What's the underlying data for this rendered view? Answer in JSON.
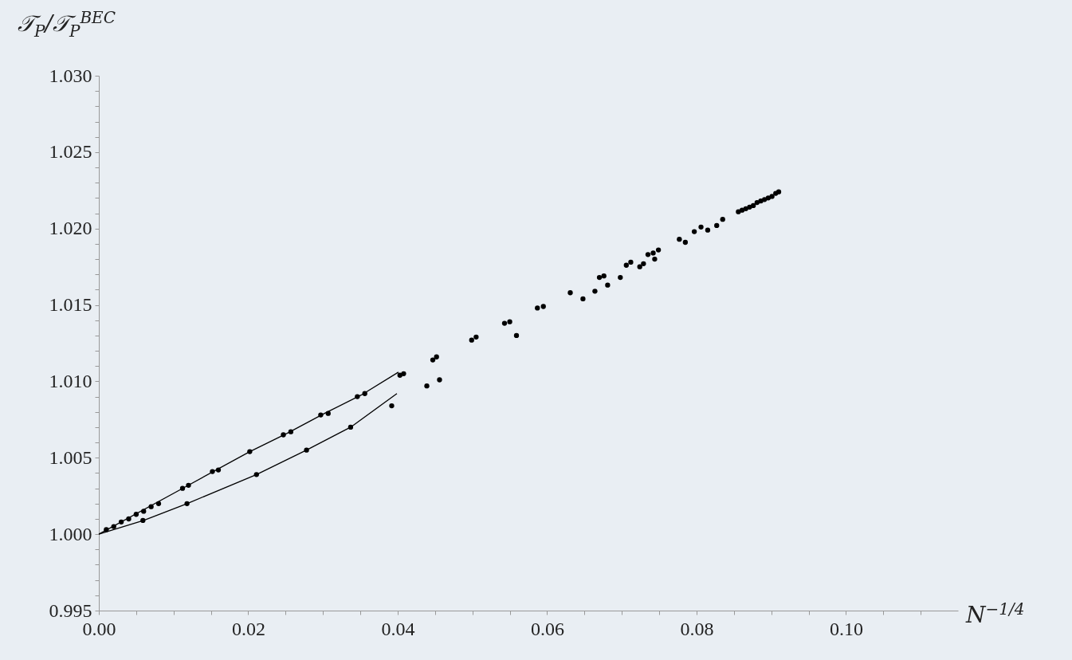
{
  "chart_data": {
    "type": "scatter",
    "xlabel": "N$^{−1/4}$",
    "ylabel": "𝒯$_{P}$/𝒯$_{P}$$^{BEC}$",
    "xlim": [
      0,
      0.115
    ],
    "ylim": [
      0.995,
      1.03
    ],
    "xticks": [
      {
        "value": 0,
        "label": "0.00"
      },
      {
        "value": 0.005,
        "label": null
      },
      {
        "value": 0.01,
        "label": null
      },
      {
        "value": 0.015,
        "label": null
      },
      {
        "value": 0.02,
        "label": "0.02"
      },
      {
        "value": 0.025,
        "label": null
      },
      {
        "value": 0.03,
        "label": null
      },
      {
        "value": 0.035,
        "label": null
      },
      {
        "value": 0.04,
        "label": "0.04"
      },
      {
        "value": 0.045,
        "label": null
      },
      {
        "value": 0.05,
        "label": null
      },
      {
        "value": 0.055,
        "label": null
      },
      {
        "value": 0.06,
        "label": "0.06"
      },
      {
        "value": 0.065,
        "label": null
      },
      {
        "value": 0.07,
        "label": null
      },
      {
        "value": 0.075,
        "label": null
      },
      {
        "value": 0.08,
        "label": "0.08"
      },
      {
        "value": 0.085,
        "label": null
      },
      {
        "value": 0.09,
        "label": null
      },
      {
        "value": 0.095,
        "label": null
      },
      {
        "value": 0.1,
        "label": "0.10"
      },
      {
        "value": 0.105,
        "label": null
      },
      {
        "value": 0.11,
        "label": null
      }
    ],
    "yticks": [
      {
        "value": 0.995,
        "label": "0.995"
      },
      {
        "value": 0.996,
        "label": null
      },
      {
        "value": 0.997,
        "label": null
      },
      {
        "value": 0.998,
        "label": null
      },
      {
        "value": 0.999,
        "label": null
      },
      {
        "value": 1.0,
        "label": "1.000"
      },
      {
        "value": 1.001,
        "label": null
      },
      {
        "value": 1.002,
        "label": null
      },
      {
        "value": 1.003,
        "label": null
      },
      {
        "value": 1.004,
        "label": null
      },
      {
        "value": 1.005,
        "label": "1.005"
      },
      {
        "value": 1.006,
        "label": null
      },
      {
        "value": 1.007,
        "label": null
      },
      {
        "value": 1.008,
        "label": null
      },
      {
        "value": 1.009,
        "label": null
      },
      {
        "value": 1.01,
        "label": "1.010"
      },
      {
        "value": 1.011,
        "label": null
      },
      {
        "value": 1.012,
        "label": null
      },
      {
        "value": 1.013,
        "label": null
      },
      {
        "value": 1.014,
        "label": null
      },
      {
        "value": 1.015,
        "label": "1.015"
      },
      {
        "value": 1.016,
        "label": null
      },
      {
        "value": 1.017,
        "label": null
      },
      {
        "value": 1.018,
        "label": null
      },
      {
        "value": 1.019,
        "label": null
      },
      {
        "value": 1.02,
        "label": "1.020"
      },
      {
        "value": 1.021,
        "label": null
      },
      {
        "value": 1.022,
        "label": null
      },
      {
        "value": 1.023,
        "label": null
      },
      {
        "value": 1.024,
        "label": null
      },
      {
        "value": 1.025,
        "label": "1.025"
      },
      {
        "value": 1.026,
        "label": null
      },
      {
        "value": 1.027,
        "label": null
      },
      {
        "value": 1.028,
        "label": null
      },
      {
        "value": 1.029,
        "label": null
      },
      {
        "value": 1.03,
        "label": "1.030"
      }
    ],
    "series": [
      {
        "marker": "circle",
        "color": "#000000",
        "x": [
          0.001,
          0.002,
          0.003,
          0.004,
          0.005,
          0.006,
          0.007,
          0.008,
          0.0112,
          0.012,
          0.0152,
          0.016,
          0.0202,
          0.0247,
          0.0257,
          0.0297,
          0.0307,
          0.0346,
          0.0356,
          0.0403,
          0.0408,
          0.0059,
          0.0118,
          0.0211,
          0.0278,
          0.0337,
          0.0392,
          0.0439,
          0.0456,
          0.0447,
          0.0452,
          0.0499,
          0.0505,
          0.0543,
          0.055,
          0.0559,
          0.0587,
          0.0595,
          0.0631,
          0.0648,
          0.0664,
          0.067,
          0.0676,
          0.0681,
          0.0698,
          0.0706,
          0.0712,
          0.0724,
          0.0729,
          0.0735,
          0.0742,
          0.0744,
          0.0749,
          0.0777,
          0.0785,
          0.0797,
          0.0806,
          0.0815,
          0.0827,
          0.0835,
          0.0856,
          0.0861,
          0.0866,
          0.0871,
          0.0876,
          0.0881,
          0.0886,
          0.0891,
          0.0896,
          0.0901,
          0.0906,
          0.091
        ],
        "values": [
          1.0003,
          1.0005,
          1.0008,
          1.001,
          1.0013,
          1.0015,
          1.0018,
          1.002,
          1.003,
          1.0032,
          1.0041,
          1.0042,
          1.0054,
          1.0065,
          1.0067,
          1.0078,
          1.0079,
          1.009,
          1.0092,
          1.0104,
          1.0105,
          1.0009,
          1.002,
          1.0039,
          1.0055,
          1.007,
          1.0084,
          1.0097,
          1.0101,
          1.0114,
          1.0116,
          1.0127,
          1.0129,
          1.0138,
          1.0139,
          1.013,
          1.0148,
          1.0149,
          1.0158,
          1.0154,
          1.0159,
          1.0168,
          1.0169,
          1.0163,
          1.0168,
          1.0176,
          1.0178,
          1.0175,
          1.0177,
          1.0183,
          1.0184,
          1.018,
          1.0186,
          1.0193,
          1.0191,
          1.0198,
          1.0201,
          1.0199,
          1.0202,
          1.0206,
          1.0211,
          1.0212,
          1.0213,
          1.0214,
          1.0215,
          1.0217,
          1.0218,
          1.0219,
          1.022,
          1.0221,
          1.0223,
          1.0224
        ]
      },
      {
        "type": "line",
        "color": "#000000",
        "x": [
          0,
          0.0116,
          0.0202,
          0.0252,
          0.0302,
          0.0351,
          0.0401
        ],
        "values": [
          1.0,
          1.0031,
          1.0054,
          1.0066,
          1.0079,
          1.0091,
          1.0106
        ]
      },
      {
        "type": "line",
        "color": "#000000",
        "x": [
          0,
          0.006,
          0.0118,
          0.0211,
          0.0278,
          0.0337,
          0.0399
        ],
        "values": [
          1.0,
          1.0009,
          1.002,
          1.0039,
          1.0055,
          1.007,
          1.0092
        ]
      }
    ]
  }
}
